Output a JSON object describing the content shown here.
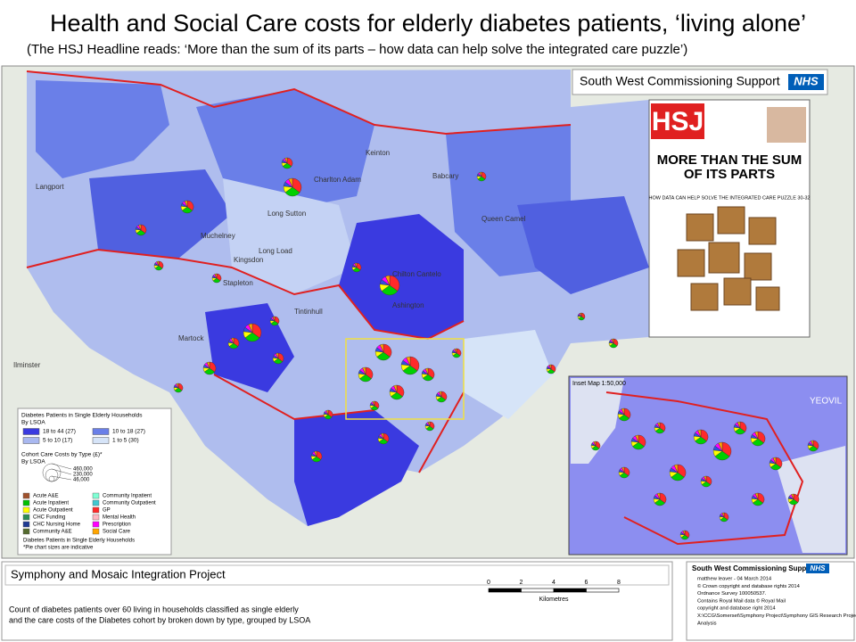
{
  "header": {
    "title": "Health and Social Care costs for elderly diabetes patients, ‘living alone’",
    "subtitle": "(The HSJ Headline reads: ‘More than the sum of its parts – how data can help solve the integrated care puzzle’)"
  },
  "banner": {
    "text": "South West Commissioning Support",
    "logo": "NHS"
  },
  "cover": {
    "masthead": "HSJ",
    "headline": "MORE THAN THE SUM OF ITS PARTS",
    "subheadline": "HOW DATA CAN HELP SOLVE THE INTEGRATED CARE PUZZLE 30-32"
  },
  "inset": {
    "label": "Inset Map 1:50,000",
    "town": "YEOVIL"
  },
  "places": [
    "Langport",
    "Muchelney",
    "Long Sutton",
    "Long Load",
    "Stapleton",
    "Martock",
    "Tintinhull",
    "Kingsdon",
    "Charlton Adam",
    "Keinton",
    "Babcary",
    "Queen Camel",
    "Chilton Cantelo",
    "Ashington",
    "Ilminster"
  ],
  "legend": {
    "title": "Diabetes Patients in Single Elderly Households",
    "subtitle": "By LSOA",
    "classes": [
      "18 to 44 (27)",
      "10 to 18 (27)",
      "5 to 10 (17)",
      "1 to 5 (30)"
    ],
    "cost_title": "Cohort Care Costs by Type (£)*",
    "cost_subtitle": "By LSOA",
    "sizes": [
      "460,000",
      "230,000",
      "46,000"
    ],
    "types": [
      "Acute A&E",
      "Community Inpatient",
      "Acute Inpatient",
      "Community Outpatient",
      "Acute Outpatient",
      "GP",
      "CHC Funding",
      "Mental Health",
      "CHC Nursing Home",
      "Prescription",
      "Community A&E",
      "Social Care"
    ],
    "footer": "Diabetes Patients in Single Elderly Households",
    "note": "*Pie chart sizes are indicative"
  },
  "footer": {
    "project": "Symphony and Mosaic Integration Project",
    "description": [
      "Count of diabetes patients over 60 living in households classified as single elderly",
      "and the care costs of the Diabetes cohort by broken down by type, grouped by LSOA"
    ],
    "scale": [
      "0",
      "2",
      "4",
      "6",
      "8"
    ],
    "scale_unit": "Kilometres",
    "org": "South West Commissioning Support",
    "logo": "NHS",
    "credits": [
      "matthew leaver - 04 March 2014",
      "© Crown copyright and database rights 2014",
      "Ordnance Survey 100050537.",
      "Contains Royal Mail data © Royal Mail",
      "copyright and database right 2014",
      "X:\\CCG\\Somerset\\Symphony Project\\Symphony GIS Research Project",
      "Analysis"
    ]
  }
}
